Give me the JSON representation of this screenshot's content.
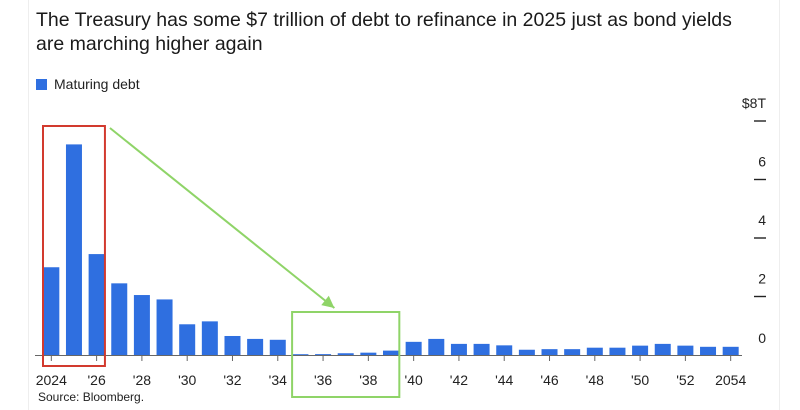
{
  "chart_data": {
    "type": "bar",
    "title": "The Treasury has some $7 trillion of debt to refinance in 2025 just as bond yields are marching higher again",
    "legend": {
      "label": "Maturing debt",
      "color": "#2f6fe0",
      "placement": "top-left"
    },
    "source": "Source: Bloomberg.",
    "ylim": [
      0,
      8
    ],
    "y_axis_side": "right",
    "y_ticks": [
      {
        "value": 8,
        "label": "$8T"
      },
      {
        "value": 6,
        "label": "6"
      },
      {
        "value": 4,
        "label": "4"
      },
      {
        "value": 2,
        "label": "2"
      },
      {
        "value": 0,
        "label": "0"
      }
    ],
    "x_tick_labels": [
      {
        "category": "2024",
        "label": "2024"
      },
      {
        "category": "2026",
        "label": "'26"
      },
      {
        "category": "2028",
        "label": "'28"
      },
      {
        "category": "2030",
        "label": "'30"
      },
      {
        "category": "2032",
        "label": "'32"
      },
      {
        "category": "2034",
        "label": "'34"
      },
      {
        "category": "2036",
        "label": "'36"
      },
      {
        "category": "2038",
        "label": "'38"
      },
      {
        "category": "2040",
        "label": "'40"
      },
      {
        "category": "2042",
        "label": "'42"
      },
      {
        "category": "2044",
        "label": "'44"
      },
      {
        "category": "2046",
        "label": "'46"
      },
      {
        "category": "2048",
        "label": "'48"
      },
      {
        "category": "2050",
        "label": "'50"
      },
      {
        "category": "2052",
        "label": "'52"
      },
      {
        "category": "2054",
        "label": "2054"
      }
    ],
    "categories": [
      "2024",
      "2025",
      "2026",
      "2027",
      "2028",
      "2029",
      "2030",
      "2031",
      "2032",
      "2033",
      "2034",
      "2035",
      "2036",
      "2037",
      "2038",
      "2039",
      "2040",
      "2041",
      "2042",
      "2043",
      "2044",
      "2045",
      "2046",
      "2047",
      "2048",
      "2049",
      "2050",
      "2051",
      "2052",
      "2053",
      "2054"
    ],
    "values": [
      3.0,
      7.2,
      3.45,
      2.45,
      2.05,
      1.9,
      1.05,
      1.15,
      0.65,
      0.55,
      0.52,
      0.02,
      0.03,
      0.06,
      0.08,
      0.15,
      0.45,
      0.55,
      0.38,
      0.38,
      0.33,
      0.18,
      0.2,
      0.2,
      0.25,
      0.25,
      0.32,
      0.38,
      0.32,
      0.28,
      0.28
    ],
    "bar_color": "#2f6fe0",
    "annotations": [
      {
        "type": "box",
        "color": "#d23a2e",
        "covers": [
          "2024",
          "2026"
        ]
      },
      {
        "type": "box",
        "color": "#8fd468",
        "covers": [
          "2035",
          "2039"
        ]
      },
      {
        "type": "arrow",
        "color": "#8fd468",
        "from": "2026",
        "to": "2037"
      }
    ]
  }
}
